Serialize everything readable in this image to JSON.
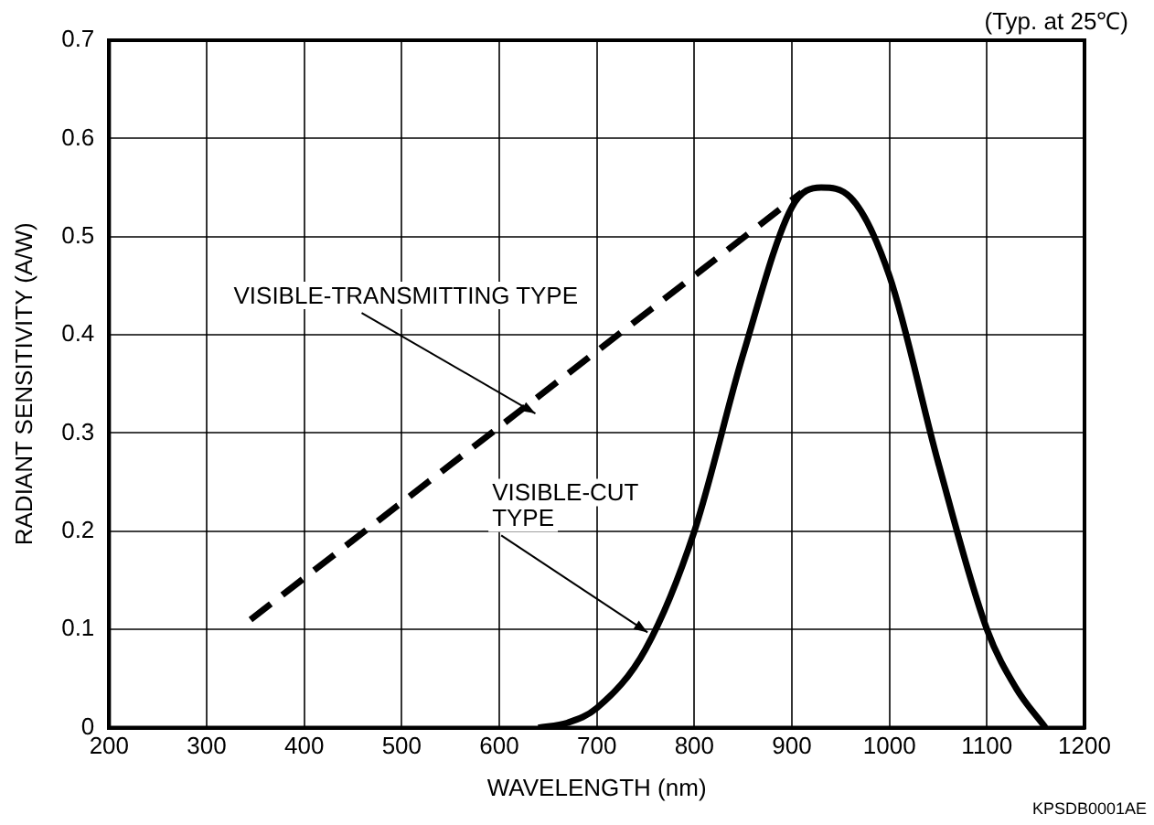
{
  "chart_data": {
    "type": "line",
    "subtitle": "(Typ. at 25℃)",
    "xlabel": "WAVELENGTH (nm)",
    "ylabel": "RADIANT SENSITIVITY (A/W)",
    "xlim": [
      200,
      1200
    ],
    "xticks": [
      200,
      300,
      400,
      500,
      600,
      700,
      800,
      900,
      1000,
      1100,
      1200
    ],
    "ylim": [
      0,
      0.7
    ],
    "yticks": [
      0,
      0.1,
      0.2,
      0.3,
      0.4,
      0.5,
      0.6,
      0.7
    ],
    "grid": true,
    "legend": false,
    "marker": "none",
    "series": [
      {
        "color": "#000000",
        "line_style": "dashed",
        "x": [
          345,
          910
        ],
        "values": [
          0.11,
          0.545
        ]
      },
      {
        "color": "#000000",
        "line_style": "solid",
        "x": [
          640,
          670,
          700,
          750,
          800,
          850,
          900,
          930,
          960,
          1000,
          1050,
          1100,
          1130,
          1160
        ],
        "values": [
          0,
          0.005,
          0.02,
          0.08,
          0.2,
          0.38,
          0.53,
          0.55,
          0.54,
          0.46,
          0.27,
          0.1,
          0.04,
          0
        ]
      }
    ],
    "annotations": [
      {
        "text": "VISIBLE-TRANSMITTING TYPE",
        "x": 637,
        "y": 0.32
      },
      {
        "text": "VISIBLE-CUT\nTYPE",
        "x": 752,
        "y": 0.097
      },
      "KPSDB0001AE"
    ]
  }
}
